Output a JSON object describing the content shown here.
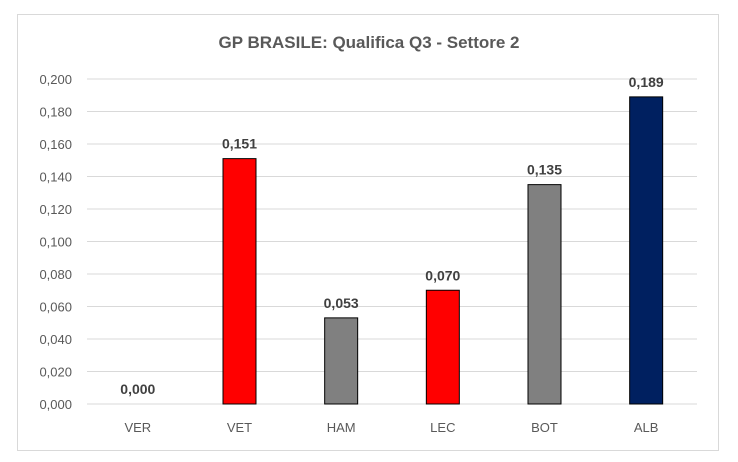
{
  "chart_data": {
    "type": "bar",
    "title": "GP BRASILE: Qualifica Q3 - Settore 2",
    "xlabel": "",
    "ylabel": "",
    "categories": [
      "VER",
      "VET",
      "HAM",
      "LEC",
      "BOT",
      "ALB"
    ],
    "values": [
      0.0,
      0.151,
      0.053,
      0.07,
      0.135,
      0.189
    ],
    "data_labels": [
      "0,000",
      "0,151",
      "0,053",
      "0,070",
      "0,135",
      "0,189"
    ],
    "bar_colors": [
      "#ff0000",
      "#ff0000",
      "#808080",
      "#ff0000",
      "#808080",
      "#002060"
    ],
    "ylim": [
      0,
      0.2
    ],
    "yticks": [
      0,
      0.02,
      0.04,
      0.06,
      0.08,
      0.1,
      0.12,
      0.14,
      0.16,
      0.18,
      0.2
    ],
    "ytick_labels": [
      "0,000",
      "0,020",
      "0,040",
      "0,060",
      "0,080",
      "0,100",
      "0,120",
      "0,140",
      "0,160",
      "0,180",
      "0,200"
    ],
    "grid": true,
    "legend": "none"
  }
}
